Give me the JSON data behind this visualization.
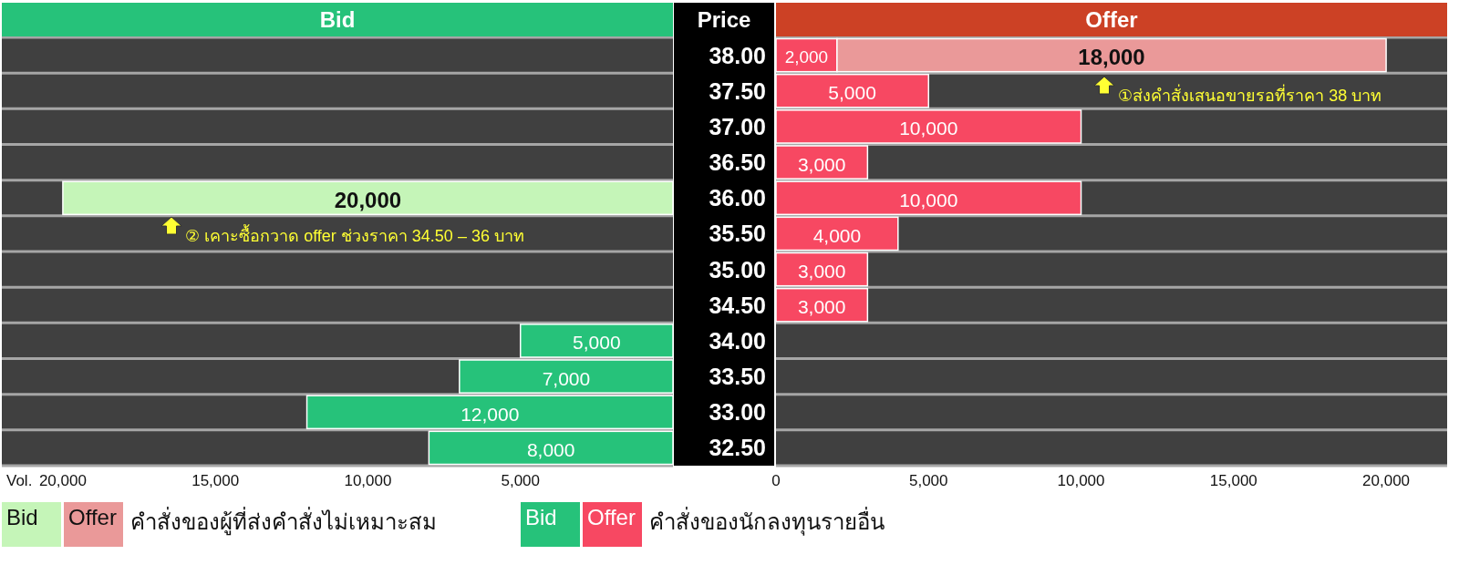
{
  "chart_data": [
    {
      "type": "bar",
      "orientation": "horizontal",
      "stacked": true,
      "title": "Bid",
      "xlabel": "Vol.",
      "categories": [
        "38.00",
        "37.50",
        "37.00",
        "36.50",
        "36.00",
        "35.50",
        "35.00",
        "34.50",
        "34.00",
        "33.50",
        "33.00",
        "32.50"
      ],
      "series": [
        {
          "color": "#26c27a",
          "values": [
            null,
            null,
            null,
            null,
            null,
            null,
            null,
            null,
            5000,
            7000,
            12000,
            8000
          ],
          "value_labels": [
            null,
            null,
            null,
            null,
            null,
            null,
            null,
            null,
            "5,000",
            "7,000",
            "12,000",
            "8,000"
          ]
        },
        {
          "color": "#c5f5b8",
          "values": [
            null,
            null,
            null,
            null,
            20000,
            null,
            null,
            null,
            null,
            null,
            null,
            null
          ],
          "value_labels": [
            null,
            null,
            null,
            null,
            "20,000",
            null,
            null,
            null,
            null,
            null,
            null,
            null
          ]
        }
      ],
      "xlim": [
        22000,
        0
      ],
      "xticks": [
        {
          "value": 20000,
          "label": "20,000"
        },
        {
          "value": 15000,
          "label": "15,000"
        },
        {
          "value": 10000,
          "label": "10,000"
        },
        {
          "value": 5000,
          "label": "5,000"
        }
      ],
      "tick_labels": "x",
      "annotations": [
        "② เคาะซื้อกวาด offer ช่วงราคา 34.50 – 36 บาท"
      ]
    },
    {
      "type": "bar",
      "orientation": "horizontal",
      "stacked": true,
      "title": "Offer",
      "ylabel": "Price",
      "categories": [
        "38.00",
        "37.50",
        "37.00",
        "36.50",
        "36.00",
        "35.50",
        "35.00",
        "34.50",
        "34.00",
        "33.50",
        "33.00",
        "32.50"
      ],
      "series": [
        {
          "name": "คำสั่งของนักลงทุนรายอื่น",
          "color": "#f74862",
          "values": [
            2000,
            5000,
            10000,
            3000,
            10000,
            4000,
            3000,
            3000,
            null,
            null,
            null,
            null
          ],
          "value_labels": [
            "2,000",
            "5,000",
            "10,000",
            "3,000",
            "10,000",
            "4,000",
            "3,000",
            "3,000",
            null,
            null,
            null,
            null
          ]
        },
        {
          "name": "คำสั่งของผู้ที่ส่งคำสั่งไม่เหมาะสม",
          "color": "#ea9999",
          "values": [
            18000,
            null,
            null,
            null,
            null,
            null,
            null,
            null,
            null,
            null,
            null,
            null
          ],
          "value_labels": [
            "18,000",
            null,
            null,
            null,
            null,
            null,
            null,
            null,
            null,
            null,
            null,
            null
          ]
        }
      ],
      "xlim": [
        0,
        22000
      ],
      "xticks": [
        0,
        {
          "value": 5000,
          "label": "5,000"
        },
        {
          "value": 10000,
          "label": "10,000"
        },
        {
          "value": 15000,
          "label": "15,000"
        },
        {
          "value": 20000,
          "label": "20,000"
        }
      ],
      "legend": "bottom",
      "annotations": [
        "①ส่งคำสั่งเสนอขายรอที่ราคา 38 บาท"
      ]
    }
  ]
}
